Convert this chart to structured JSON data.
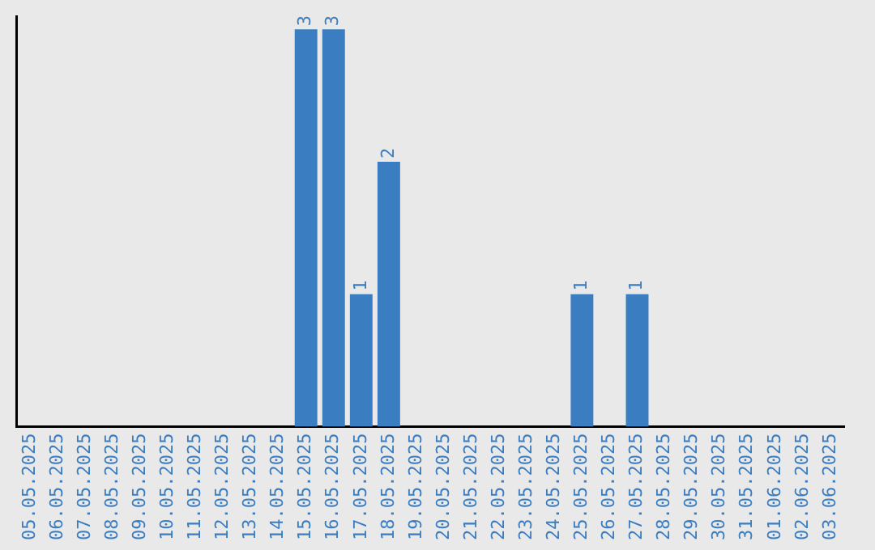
{
  "chart_data": {
    "type": "bar",
    "categories": [
      "05.05.2025",
      "06.05.2025",
      "07.05.2025",
      "08.05.2025",
      "09.05.2025",
      "10.05.2025",
      "11.05.2025",
      "12.05.2025",
      "13.05.2025",
      "14.05.2025",
      "15.05.2025",
      "16.05.2025",
      "17.05.2025",
      "18.05.2025",
      "19.05.2025",
      "20.05.2025",
      "21.05.2025",
      "22.05.2025",
      "23.05.2025",
      "24.05.2025",
      "25.05.2025",
      "26.05.2025",
      "27.05.2025",
      "28.05.2025",
      "29.05.2025",
      "30.05.2025",
      "31.05.2025",
      "01.06.2025",
      "02.06.2025",
      "03.06.2025"
    ],
    "values": [
      0,
      0,
      0,
      0,
      0,
      0,
      0,
      0,
      0,
      0,
      3,
      3,
      1,
      2,
      0,
      0,
      0,
      0,
      0,
      0,
      1,
      0,
      1,
      0,
      0,
      0,
      0,
      0,
      0,
      0
    ],
    "value_labels": [
      null,
      null,
      null,
      null,
      null,
      null,
      null,
      null,
      null,
      null,
      "3",
      "3",
      "1",
      "2",
      null,
      null,
      null,
      null,
      null,
      null,
      "1",
      null,
      "1",
      null,
      null,
      null,
      null,
      null,
      null,
      null
    ],
    "color": "#3a7dc1",
    "ylim": [
      0,
      3.1
    ],
    "tick_labels": "x",
    "grid": false,
    "legend": false
  }
}
